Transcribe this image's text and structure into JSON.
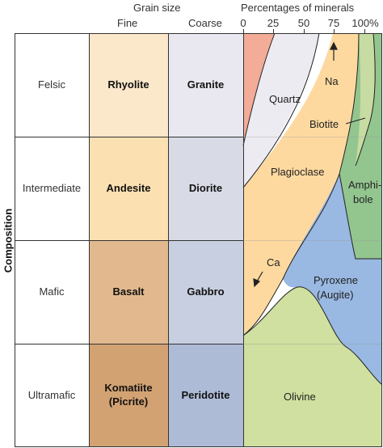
{
  "header": {
    "grain_size": "Grain size",
    "fine": "Fine",
    "coarse": "Coarse",
    "percentages": "Percentages of minerals",
    "ticks": [
      "0",
      "25",
      "50",
      "75",
      "100%"
    ]
  },
  "axis_label": "Composition",
  "rows": [
    {
      "name": "Felsic",
      "fine": "Rhyolite",
      "coarse": "Granite"
    },
    {
      "name": "Intermediate",
      "fine": "Andesite",
      "coarse": "Diorite"
    },
    {
      "name": "Mafic",
      "fine": "Basalt",
      "coarse": "Gabbro"
    },
    {
      "name": "Ultramafic",
      "fine": "Komatiite\n(Picrite)",
      "coarse": "Peridotite"
    }
  ],
  "minerals": {
    "quartz": "Quartz",
    "na": "Na",
    "biotite": "Biotite",
    "plagioclase": "Plagioclase",
    "amphibole_1": "Amphi-",
    "amphibole_2": "bole",
    "ca": "Ca",
    "pyroxene_1": "Pyroxene",
    "pyroxene_2": "(Augite)",
    "olivine": "Olivine"
  },
  "colors": {
    "felsic_fine": "#fbe7c9",
    "intermediate_fine": "#fbe0b2",
    "mafic_fine": "#e2b98f",
    "ultramafic_fine": "#d3a273",
    "felsic_coarse": "#e9e8f0",
    "intermediate_coarse": "#d8dbe6",
    "mafic_coarse": "#c7cfe0",
    "ultramafic_coarse": "#aebbd6",
    "orthoclase": "#f2ac98",
    "quartz": "#ecebf2",
    "plagioclase": "#fdd9a0",
    "amphibole": "#93c58f",
    "pyroxene": "#99b8e2",
    "olivine": "#cfe0a0"
  }
}
